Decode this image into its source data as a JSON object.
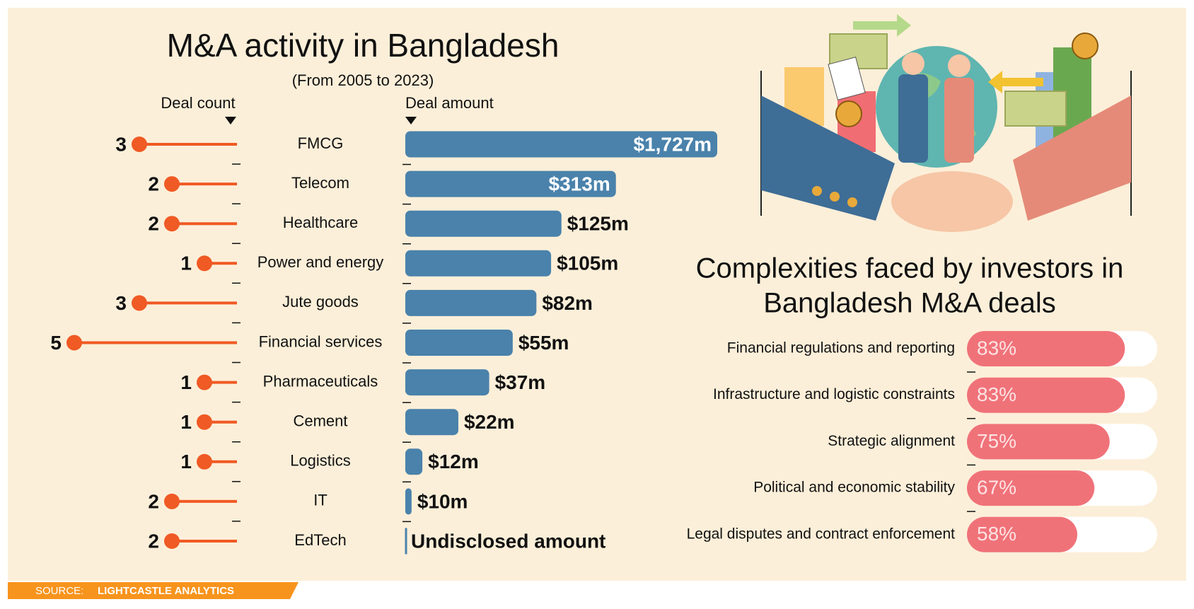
{
  "title": "M&A activity in Bangladesh",
  "subtitle": "(From 2005 to 2023)",
  "source": {
    "label": "SOURCE:",
    "name": "LIGHTCASTLE ANALYTICS"
  },
  "chart_data": [
    {
      "type": "lollipop",
      "title": "Deal count",
      "categories": [
        "FMCG",
        "Telecom",
        "Healthcare",
        "Power and energy",
        "Jute goods",
        "Financial services",
        "Pharmaceuticals",
        "Cement",
        "Logistics",
        "IT",
        "EdTech"
      ],
      "values": [
        3,
        2,
        2,
        1,
        3,
        5,
        1,
        1,
        1,
        2,
        2
      ],
      "color": "#f05a24",
      "xlim": [
        0,
        5
      ]
    },
    {
      "type": "bar",
      "title": "Deal amount",
      "values": [
        1727,
        313,
        125,
        105,
        82,
        55,
        37,
        22,
        12,
        10,
        null
      ],
      "value_labels": [
        "$1,727m",
        "$313m",
        "$125m",
        "$105m",
        "$82m",
        "$55m",
        "$37m",
        "$22m",
        "$12m",
        "$10m",
        "Undisclosed amount"
      ],
      "color": "#4a82ab",
      "log_scale": true,
      "xlim": [
        9,
        1727
      ]
    },
    {
      "type": "bar",
      "title": [
        "Complexities faced by investors in",
        "Bangladesh M&A deals"
      ],
      "categories": [
        "Financial regulations and reporting",
        "Infrastructure and logistic constraints",
        "Strategic alignment",
        "Political and economic stability",
        "Legal disputes and contract enforcement"
      ],
      "values": [
        83,
        83,
        75,
        67,
        58
      ],
      "value_labels": [
        "83%",
        "83%",
        "75%",
        "67%",
        "58%"
      ],
      "color": "#f07279",
      "xlim": [
        0,
        100
      ]
    }
  ]
}
